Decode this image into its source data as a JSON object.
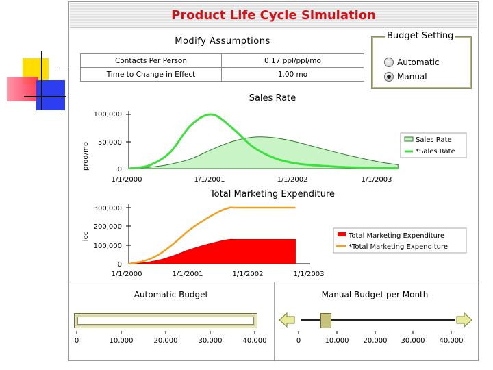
{
  "app": {
    "title": "Product Life Cycle Simulation"
  },
  "assumptions": {
    "title": "Modify Assumptions",
    "rows": [
      {
        "label": "Contacts Per Person",
        "value": "0.17 ppl/ppl/mo"
      },
      {
        "label": "Time to Change in Effect",
        "value": "1.00 mo"
      }
    ]
  },
  "budget_setting": {
    "title": "Budget Setting",
    "options": [
      {
        "label": "Automatic",
        "selected": false
      },
      {
        "label": "Manual",
        "selected": true
      }
    ]
  },
  "sales_chart": {
    "title": "Sales Rate",
    "ylabel": "prod/mo",
    "yticks": [
      "0",
      "50,000",
      "100,000"
    ],
    "xticks": [
      "1/1/2000",
      "1/1/2001",
      "1/1/2002",
      "1/1/2003"
    ],
    "legend": [
      "Sales Rate",
      "*Sales Rate"
    ]
  },
  "marketing_chart": {
    "title": "Total Marketing Expenditure",
    "ylabel": "loc",
    "yticks": [
      "0",
      "100,000",
      "200,000",
      "300,000"
    ],
    "xticks": [
      "1/1/2000",
      "1/1/2001",
      "1/1/2002",
      "1/1/2003"
    ],
    "legend": [
      "Total Marketing Expenditure",
      "*Total Marketing Expenditure"
    ]
  },
  "chart_data": [
    {
      "type": "area",
      "title": "Sales Rate",
      "xlabel": "",
      "ylabel": "prod/mo",
      "ylim": [
        0,
        100000
      ],
      "x_months": [
        0,
        3,
        6,
        9,
        12,
        15,
        18,
        21,
        24,
        27,
        30,
        33,
        36,
        39
      ],
      "series": [
        {
          "name": "Sales Rate",
          "style": "area",
          "values": [
            0,
            2500,
            8000,
            18000,
            35000,
            50000,
            58000,
            57000,
            50000,
            40000,
            30000,
            21000,
            13000,
            7000
          ]
        },
        {
          "name": "*Sales Rate",
          "style": "line",
          "values": [
            0,
            6000,
            30000,
            80000,
            100000,
            75000,
            40000,
            20000,
            10000,
            6000,
            3500,
            2000,
            1000,
            500
          ]
        }
      ],
      "colors": {
        "area_fill": "#c9f5c6",
        "area_line": "#2f7a2f",
        "line": "#3ee03e"
      }
    },
    {
      "type": "area",
      "title": "Total Marketing Expenditure",
      "xlabel": "",
      "ylabel": "loc",
      "ylim": [
        0,
        300000
      ],
      "x_months": [
        0,
        3,
        6,
        9,
        12,
        15,
        18,
        20,
        21,
        24,
        27,
        30,
        33
      ],
      "series": [
        {
          "name": "Total Marketing Expenditure",
          "style": "area",
          "values": [
            0,
            6000,
            20000,
            45000,
            75000,
            100000,
            120000,
            130000,
            130000,
            130000,
            130000,
            130000,
            130000
          ]
        },
        {
          "name": "*Total Marketing Expenditure",
          "style": "line",
          "values": [
            0,
            15000,
            50000,
            110000,
            180000,
            235000,
            280000,
            300000,
            300000,
            300000,
            300000,
            300000,
            300000
          ]
        }
      ],
      "colors": {
        "area_fill": "#ff0000",
        "line": "#f0a020"
      }
    }
  ],
  "automatic_budget": {
    "title": "Automatic Budget",
    "ticks": [
      "0",
      "10,000",
      "20,000",
      "30,000",
      "40,000"
    ]
  },
  "manual_budget": {
    "title": "Manual Budget per Month",
    "ticks": [
      "0",
      "10,000",
      "20,000",
      "30,000",
      "40,000"
    ],
    "value": 7000,
    "max": 40000
  }
}
